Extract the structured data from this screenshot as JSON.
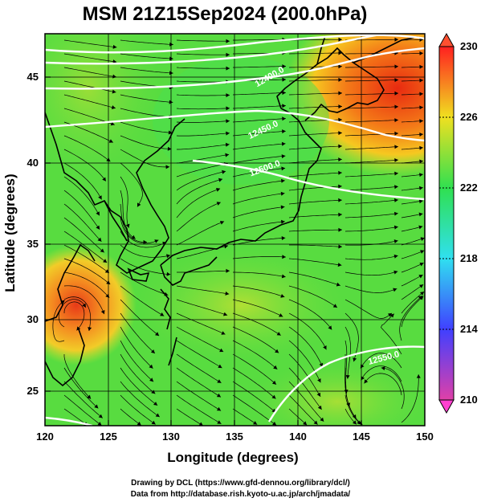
{
  "title": "MSM 21Z15Sep2024 (200.0hPa)",
  "x_axis": {
    "label": "Longitude (degrees)",
    "ticks": [
      "120",
      "125",
      "130",
      "135",
      "140",
      "145",
      "150"
    ]
  },
  "y_axis": {
    "label": "Latitude  (degrees)",
    "ticks": [
      "25",
      "30",
      "35",
      "40",
      "45"
    ]
  },
  "colorbar": {
    "min": 210,
    "max": 230,
    "ticks": [
      "230",
      "226",
      "222",
      "218",
      "214",
      "210"
    ],
    "colors": [
      "#e040a8",
      "#4040ff",
      "#30e0f0",
      "#30e050",
      "#f0e020",
      "#ff2020"
    ]
  },
  "contour_labels": [
    "12400.0",
    "12450.0",
    "12500.0",
    "12550.0"
  ],
  "credits": {
    "line1": "Drawing by DCL (https://www.gfd-dennou.org/library/dcl/)",
    "line2": "Data from http://database.rish.kyoto-u.ac.jp/arch/jmadata/"
  },
  "map": {
    "lon_range": [
      120,
      150
    ],
    "lat_range": [
      23,
      48
    ],
    "grid_lon": [
      125,
      130,
      135,
      140,
      145
    ],
    "grid_lat": [
      25,
      30,
      35,
      40,
      45
    ],
    "warm_regions": [
      "northeast (around 46N 147E)",
      "typhoon core (around 30.5N 122.5E)"
    ]
  }
}
